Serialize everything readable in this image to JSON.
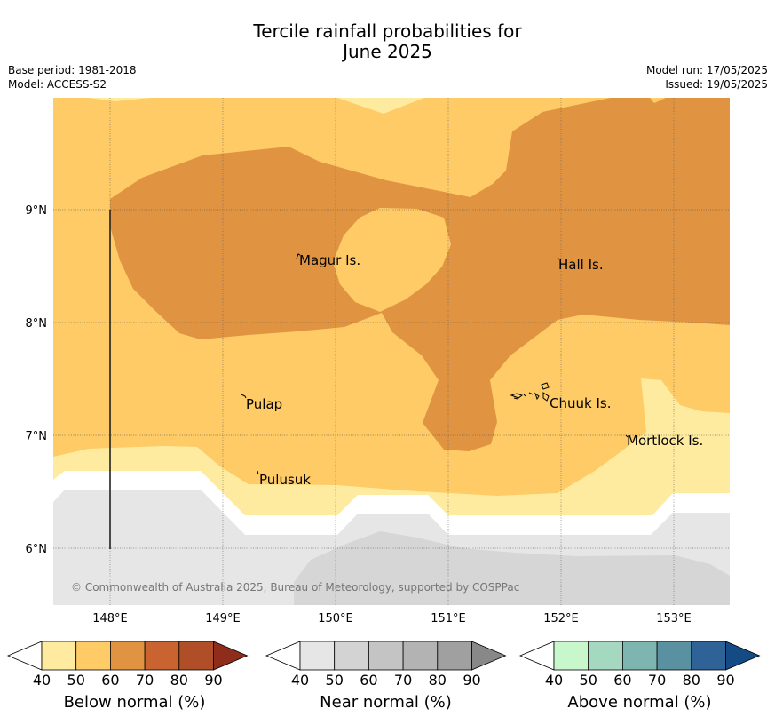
{
  "title": {
    "line1": "Tercile rainfall probabilities for",
    "line2": "June 2025"
  },
  "meta_left": {
    "base_period": "Base period: 1981-2018",
    "model": "Model: ACCESS-S2"
  },
  "meta_right": {
    "model_run": "Model run: 17/05/2025",
    "issued": "Issued: 19/05/2025"
  },
  "map": {
    "lon_ticks": [
      "148°E",
      "149°E",
      "150°E",
      "151°E",
      "152°E",
      "153°E"
    ],
    "lat_ticks": [
      "9°N",
      "8°N",
      "7°N",
      "6°N"
    ],
    "places": [
      "Magur Is.",
      "Hall Is.",
      "Pulap",
      "Chuuk Is.",
      "Mortlock Is.",
      "Pulusuk"
    ],
    "copyright": "© Commonwealth of Australia 2025, Bureau of Meteorology, supported by COSPPac"
  },
  "colorbars": [
    {
      "label": "Below normal (%)",
      "ticks": [
        "40",
        "50",
        "60",
        "70",
        "80",
        "90"
      ],
      "colors": [
        "#ffffff",
        "#ffeb9f",
        "#fecb66",
        "#e09442",
        "#c9632f",
        "#b04f27",
        "#8f2d1c"
      ]
    },
    {
      "label": "Near normal (%)",
      "ticks": [
        "40",
        "50",
        "60",
        "70",
        "80",
        "90"
      ],
      "colors": [
        "#ffffff",
        "#e6e6e6",
        "#d3d3d3",
        "#c4c4c4",
        "#b3b3b3",
        "#a0a0a0",
        "#888888"
      ]
    },
    {
      "label": "Above normal (%)",
      "ticks": [
        "40",
        "50",
        "60",
        "70",
        "80",
        "90"
      ],
      "colors": [
        "#ffffff",
        "#c9f7cc",
        "#a4d8c0",
        "#7fb5b0",
        "#5a91a1",
        "#2f6296",
        "#144b84"
      ]
    }
  ]
}
